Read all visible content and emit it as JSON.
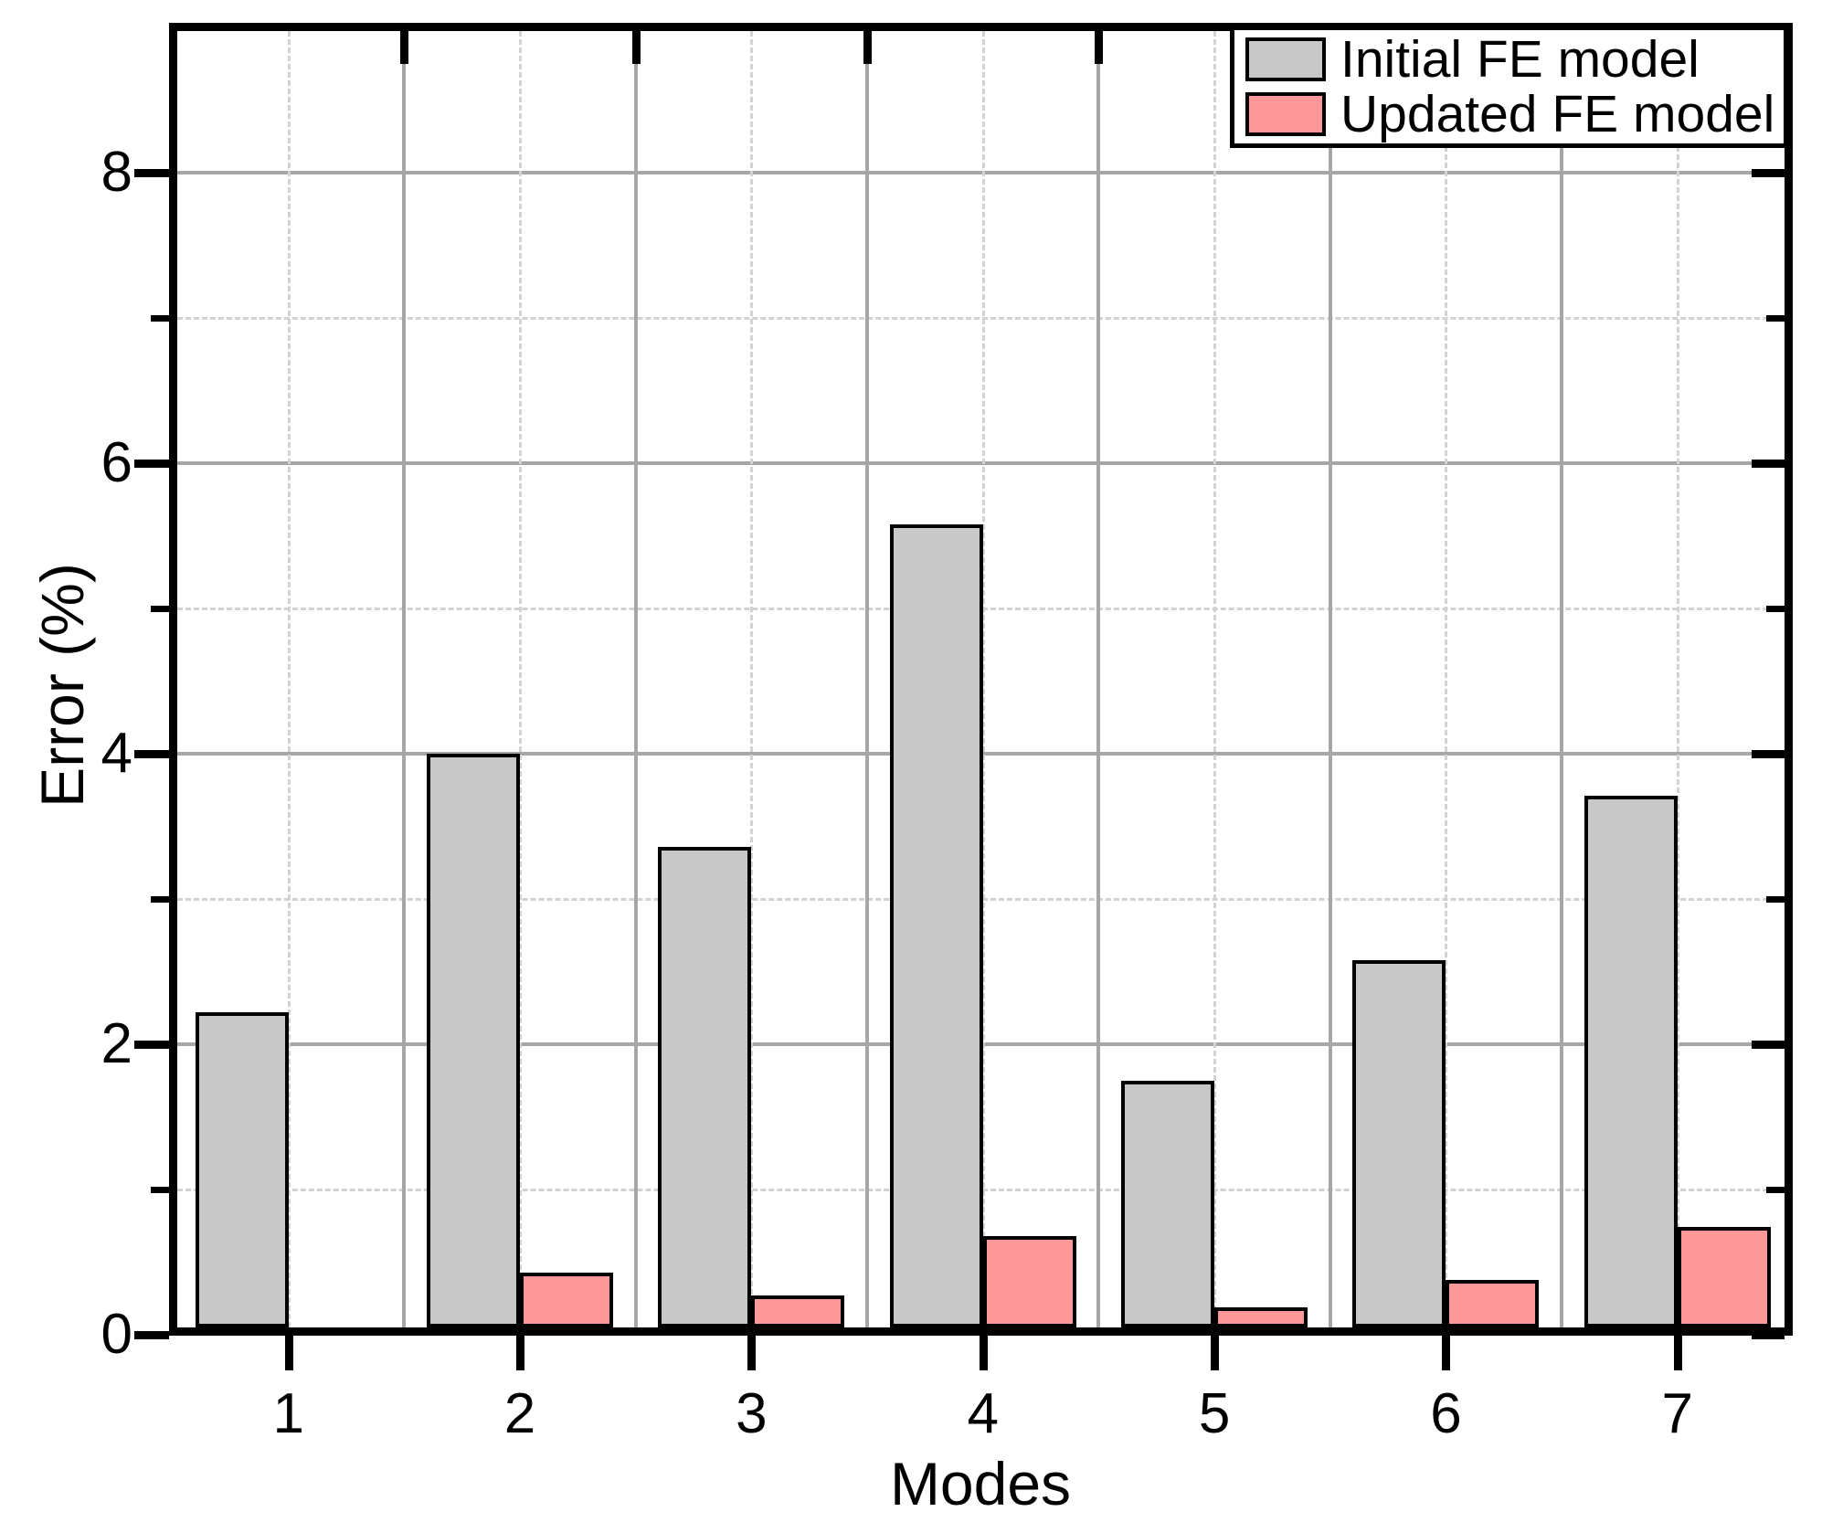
{
  "chart_data": {
    "type": "bar",
    "title": "",
    "xlabel": "Modes",
    "ylabel": "Error (%)",
    "categories": [
      "1",
      "2",
      "3",
      "4",
      "5",
      "6",
      "7"
    ],
    "series": [
      {
        "name": "Initial FE model",
        "color": "#c8c8c8",
        "values": [
          2.22,
          4.0,
          3.36,
          5.58,
          1.75,
          2.58,
          3.71
        ]
      },
      {
        "name": "Updated FE model",
        "color": "#ff9999",
        "values": [
          0,
          0.43,
          0.27,
          0.68,
          0.19,
          0.38,
          0.74
        ]
      }
    ],
    "ylim": [
      0,
      9
    ],
    "yticks_major": [
      0,
      2,
      4,
      6,
      8
    ],
    "yticks_minor": [
      1,
      3,
      5,
      7
    ],
    "grid": {
      "horizontal_major": "solid",
      "horizontal_minor": "dashed",
      "vertical_at_category_centers": "dashed",
      "vertical_at_category_boundaries": "solid"
    },
    "legend_position": "top-right",
    "frame_color": "#000000",
    "grid_major_color": "#a6a6a6",
    "grid_minor_color": "#d2d2d2"
  }
}
